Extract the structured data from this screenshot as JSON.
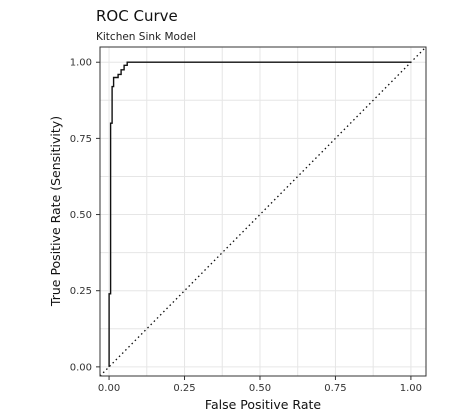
{
  "chart_data": {
    "type": "line",
    "title": "ROC Curve",
    "subtitle": "Kitchen Sink Model",
    "xlabel": "False Positive Rate",
    "ylabel": "True Positive Rate (Sensitivity)",
    "xlim": [
      -0.03,
      1.05
    ],
    "ylim": [
      -0.03,
      1.05
    ],
    "x_ticks": [
      0.0,
      0.25,
      0.5,
      0.75,
      1.0
    ],
    "y_ticks": [
      0.0,
      0.25,
      0.5,
      0.75,
      1.0
    ],
    "x_tick_labels": [
      "0.00",
      "0.25",
      "0.50",
      "0.75",
      "1.00"
    ],
    "y_tick_labels": [
      "0.00",
      "0.25",
      "0.50",
      "0.75",
      "1.00"
    ],
    "grid": true,
    "series": [
      {
        "style": "solid",
        "x": [
          0.0,
          0.0,
          0.005,
          0.005,
          0.01,
          0.01,
          0.015,
          0.015,
          0.03,
          0.03,
          0.04,
          0.04,
          0.05,
          0.05,
          0.06,
          0.06,
          1.0
        ],
        "y": [
          0.0,
          0.24,
          0.24,
          0.8,
          0.8,
          0.92,
          0.92,
          0.95,
          0.95,
          0.96,
          0.96,
          0.975,
          0.975,
          0.99,
          0.99,
          1.0,
          1.0
        ]
      },
      {
        "style": "dotted",
        "x": [
          -0.03,
          1.05
        ],
        "y": [
          -0.03,
          1.05
        ]
      }
    ]
  }
}
